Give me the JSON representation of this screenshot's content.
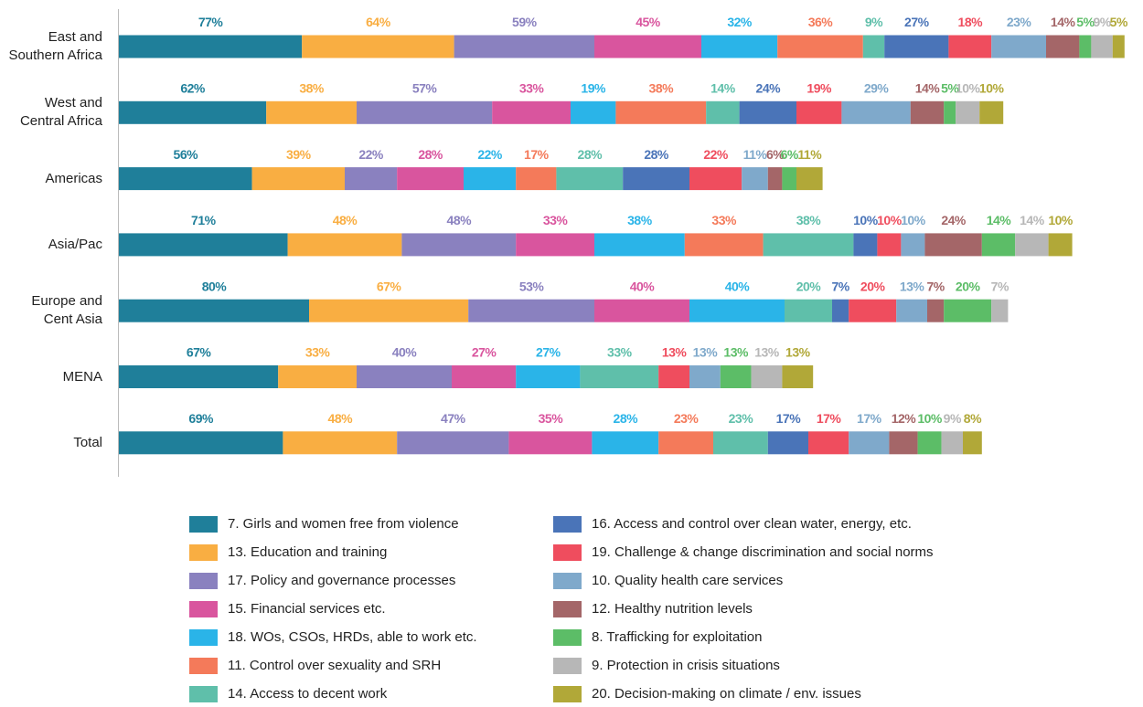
{
  "chart_data": {
    "type": "stacked-barh",
    "categories": [
      "East and Southern Africa",
      "West and Central Africa",
      "Americas",
      "Asia/Pac",
      "Europe and Cent Asia",
      "MENA",
      "Total"
    ],
    "series": [
      {
        "name": "7. Girls and women free from violence",
        "color": "#1f7f9a",
        "values": [
          77,
          62,
          56,
          71,
          80,
          67,
          69
        ],
        "value_labels": [
          "77%",
          "62%",
          "56%",
          "71%",
          "80%",
          "67%",
          "69%"
        ]
      },
      {
        "name": "13. Education and training",
        "color": "#f9ae42",
        "values": [
          64,
          38,
          39,
          48,
          67,
          33,
          48
        ],
        "value_labels": [
          "64%",
          "38%",
          "39%",
          "48%",
          "67%",
          "33%",
          "48%"
        ]
      },
      {
        "name": "17. Policy and governance processes",
        "color": "#8a81bf",
        "values": [
          59,
          57,
          22,
          48,
          53,
          40,
          47
        ],
        "value_labels": [
          "59%",
          "57%",
          "22%",
          "48%",
          "53%",
          "40%",
          "47%"
        ]
      },
      {
        "name": "15. Financial services etc.",
        "color": "#d9559e",
        "values": [
          45,
          33,
          28,
          33,
          40,
          27,
          35
        ],
        "value_labels": [
          "45%",
          "33%",
          "28%",
          "33%",
          "40%",
          "27%",
          "35%"
        ]
      },
      {
        "name": "18. WOs, CSOs, HRDs, able to work etc.",
        "color": "#2ab4e8",
        "values": [
          32,
          19,
          22,
          38,
          40,
          27,
          28
        ],
        "value_labels": [
          "32%",
          "19%",
          "22%",
          "38%",
          "40%",
          "27%",
          "28%"
        ]
      },
      {
        "name": "11. Control over sexuality and SRH",
        "color": "#f47a5a",
        "values": [
          36,
          38,
          17,
          33,
          null,
          null,
          23
        ],
        "value_labels": [
          "36%",
          "38%",
          "17%",
          "33%",
          null,
          null,
          "23%"
        ]
      },
      {
        "name": "14. Access to decent work",
        "color": "#5fbfaa",
        "values": [
          9,
          14,
          28,
          38,
          20,
          33,
          23
        ],
        "value_labels": [
          "9%",
          "14%",
          "28%",
          "38%",
          "20%",
          "33%",
          "23%"
        ]
      },
      {
        "name": "16. Access and control over clean water, energy, etc.",
        "color": "#4a74b8",
        "values": [
          27,
          24,
          28,
          10,
          7,
          null,
          17
        ],
        "value_labels": [
          "27%",
          "24%",
          "28%",
          "10%",
          "7%",
          null,
          "17%"
        ]
      },
      {
        "name": "19. Challenge & change discrimination and social norms",
        "color": "#ef4d5e",
        "values": [
          18,
          19,
          22,
          10,
          20,
          13,
          17
        ],
        "value_labels": [
          "18%",
          "19%",
          "22%",
          "10%",
          "20%",
          "13%",
          "17%"
        ]
      },
      {
        "name": "10. Quality health care services",
        "color": "#7fa9cb",
        "values": [
          23,
          29,
          11,
          10,
          13,
          13,
          17
        ],
        "value_labels": [
          "23%",
          "29%",
          "11%",
          "10%",
          "13%",
          "13%",
          "17%"
        ]
      },
      {
        "name": "12. Healthy nutrition levels",
        "color": "#a46668",
        "values": [
          14,
          14,
          6,
          24,
          7,
          null,
          12
        ],
        "value_labels": [
          "14%",
          "14%",
          "6%",
          "24%",
          "7%",
          null,
          "12%"
        ]
      },
      {
        "name": "8. Trafficking for exploitation",
        "color": "#5cbd67",
        "values": [
          5,
          5,
          6,
          14,
          20,
          13,
          10
        ],
        "value_labels": [
          "5%",
          "5%",
          "6%",
          "14%",
          "20%",
          "13%",
          "10%"
        ]
      },
      {
        "name": "9. Protection in crisis situations",
        "color": "#b7b7b7",
        "values": [
          9,
          10,
          null,
          14,
          7,
          13,
          9
        ],
        "value_labels": [
          "9%",
          "10%",
          null,
          "14%",
          "7%",
          "13%",
          "9%"
        ]
      },
      {
        "name": "20. Decision-making on climate / env. issues",
        "color": "#b1a838",
        "values": [
          5,
          10,
          11,
          10,
          null,
          13,
          8
        ],
        "value_labels": [
          "5%",
          "10%",
          "11%",
          "10%",
          null,
          "13%",
          "8%"
        ]
      }
    ]
  }
}
